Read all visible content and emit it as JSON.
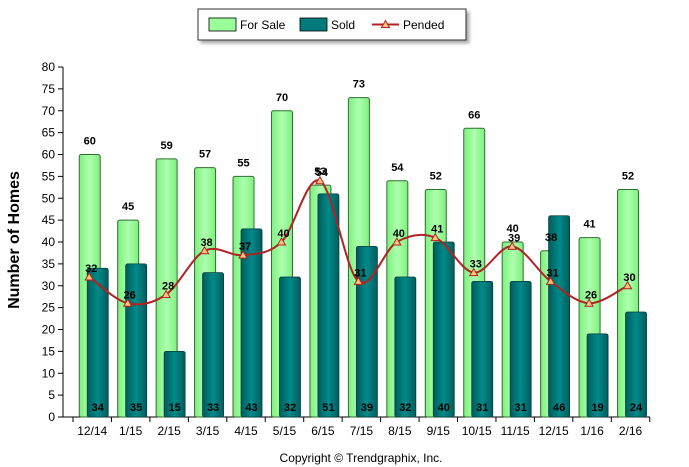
{
  "chart_data": {
    "type": "bar",
    "categories": [
      "12/14",
      "1/15",
      "2/15",
      "3/15",
      "4/15",
      "5/15",
      "6/15",
      "7/15",
      "8/15",
      "9/15",
      "10/15",
      "11/15",
      "12/15",
      "1/16",
      "2/16"
    ],
    "series": [
      {
        "name": "For Sale",
        "kind": "bar",
        "color": "#99ff99",
        "values": [
          60,
          45,
          59,
          57,
          55,
          70,
          53,
          73,
          54,
          52,
          66,
          40,
          38,
          41,
          52
        ]
      },
      {
        "name": "Sold",
        "kind": "bar",
        "color": "#007b7b",
        "values": [
          34,
          35,
          15,
          33,
          43,
          32,
          51,
          39,
          32,
          40,
          31,
          31,
          46,
          19,
          24
        ]
      },
      {
        "name": "Pended",
        "kind": "line",
        "color": "#b22222",
        "values": [
          32,
          26,
          28,
          38,
          37,
          40,
          54,
          31,
          40,
          41,
          33,
          39,
          31,
          26,
          30
        ]
      }
    ],
    "ylabel": "Number of Homes",
    "xlabel": "",
    "ylim": [
      0,
      80
    ],
    "yticks": [
      0,
      5,
      10,
      15,
      20,
      25,
      30,
      35,
      40,
      45,
      50,
      55,
      60,
      65,
      70,
      75,
      80
    ],
    "grid": false,
    "legend_position": "top-center",
    "footer": "Copyright © Trendgraphix, Inc."
  }
}
